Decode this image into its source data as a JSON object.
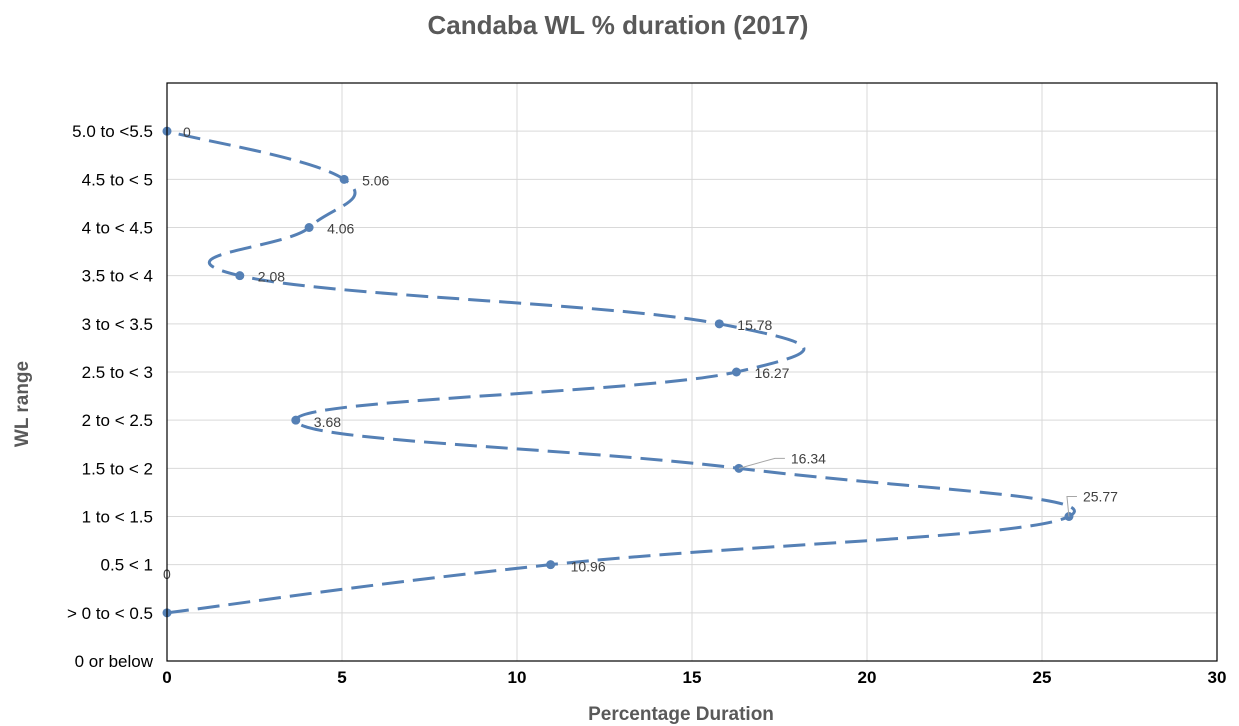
{
  "chart_data": {
    "type": "scatter",
    "title": "Candaba WL % duration (2017)",
    "xlabel": "Percentage Duration",
    "ylabel": "WL range",
    "xlim": [
      0,
      30
    ],
    "x_ticks": [
      "0",
      "5",
      "10",
      "15",
      "20",
      "25",
      "30"
    ],
    "categories": [
      "0 or below",
      "> 0 to < 0.5",
      "0.5 < 1",
      "1 to < 1.5",
      "1.5 to < 2",
      "2 to < 2.5",
      "2.5 to < 3",
      "3 to < 3.5",
      "3.5 to < 4",
      "4 to < 4.5",
      "4.5 to < 5",
      "5.0 to <5.5"
    ],
    "grid": true,
    "series": [
      {
        "line_style": "dashed smoothed",
        "color": "#5580b5",
        "points": [
          {
            "category": "> 0 to < 0.5",
            "x": 0,
            "label": "0"
          },
          {
            "category": "0.5 < 1",
            "x": 10.96,
            "label": "10.96"
          },
          {
            "category": "1 to < 1.5",
            "x": 25.77,
            "label": "25.77"
          },
          {
            "category": "1.5 to < 2",
            "x": 16.34,
            "label": "16.34"
          },
          {
            "category": "2 to < 2.5",
            "x": 3.68,
            "label": "3.68"
          },
          {
            "category": "2.5 to < 3",
            "x": 16.27,
            "label": "16.27"
          },
          {
            "category": "3 to < 3.5",
            "x": 15.78,
            "label": "15.78"
          },
          {
            "category": "3.5 to < 4",
            "x": 2.08,
            "label": "2.08"
          },
          {
            "category": "4 to < 4.5",
            "x": 4.06,
            "label": "4.06"
          },
          {
            "category": "4.5 to < 5",
            "x": 5.06,
            "label": "5.06"
          },
          {
            "category": "5.0 to <5.5",
            "x": 0,
            "label": "0"
          }
        ]
      }
    ]
  }
}
